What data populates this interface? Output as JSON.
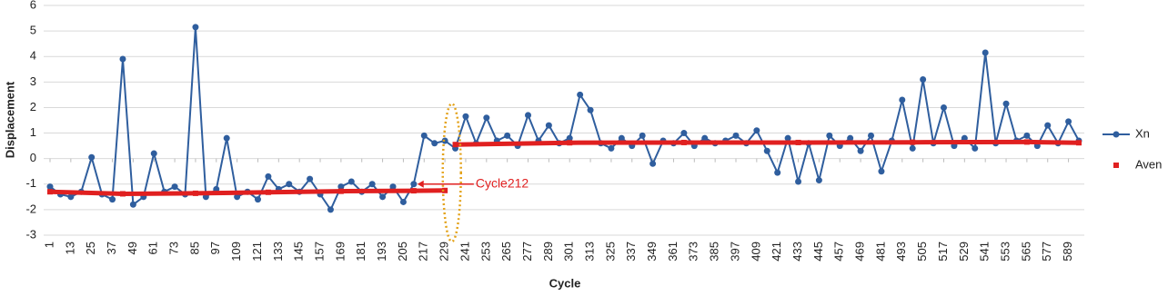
{
  "chart_data": {
    "type": "line",
    "xlabel": "Cycle",
    "ylabel": "Displacement",
    "annotation": "Cycle212",
    "xlim": [
      1,
      595
    ],
    "ylim": [
      -3,
      6
    ],
    "xticks": [
      1,
      13,
      25,
      37,
      49,
      61,
      73,
      85,
      97,
      109,
      121,
      133,
      145,
      157,
      169,
      181,
      193,
      205,
      217,
      229,
      241,
      253,
      265,
      277,
      289,
      301,
      313,
      325,
      337,
      349,
      361,
      373,
      385,
      397,
      409,
      421,
      433,
      445,
      457,
      469,
      481,
      493,
      505,
      517,
      529,
      541,
      553,
      565,
      577,
      589
    ],
    "yticks": [
      -3,
      -2,
      -1,
      0,
      1,
      2,
      3,
      4,
      5,
      6
    ],
    "grid": true,
    "legend": "right",
    "series": [
      {
        "name": "Xn",
        "color": "#2f5e9e",
        "marker": "circle",
        "x": [
          1,
          7,
          13,
          19,
          25,
          31,
          37,
          43,
          49,
          55,
          61,
          67,
          73,
          79,
          85,
          91,
          97,
          103,
          109,
          115,
          121,
          127,
          133,
          139,
          145,
          151,
          157,
          163,
          169,
          175,
          181,
          187,
          193,
          199,
          205,
          211,
          217,
          223,
          229,
          235,
          241,
          247,
          253,
          259,
          265,
          271,
          277,
          283,
          289,
          295,
          301,
          307,
          313,
          319,
          325,
          331,
          337,
          343,
          349,
          355,
          361,
          367,
          373,
          379,
          385,
          391,
          397,
          403,
          409,
          415,
          421,
          427,
          433,
          439,
          445,
          451,
          457,
          463,
          469,
          475,
          481,
          487,
          493,
          499,
          505,
          511,
          517,
          523,
          529,
          535,
          541,
          547,
          553,
          559,
          565,
          571,
          577,
          583,
          589,
          595
        ],
        "values": [
          -1.1,
          -1.4,
          -1.5,
          -1.3,
          0.05,
          -1.4,
          -1.6,
          3.9,
          -1.8,
          -1.5,
          0.2,
          -1.3,
          -1.1,
          -1.4,
          5.15,
          -1.5,
          -1.2,
          0.8,
          -1.5,
          -1.3,
          -1.6,
          -0.7,
          -1.2,
          -1.0,
          -1.3,
          -0.8,
          -1.4,
          -2.0,
          -1.1,
          -0.9,
          -1.3,
          -1.0,
          -1.5,
          -1.1,
          -1.7,
          -1.0,
          0.9,
          0.6,
          0.7,
          0.4,
          1.65,
          0.6,
          1.6,
          0.7,
          0.9,
          0.5,
          1.7,
          0.7,
          1.3,
          0.6,
          0.8,
          2.5,
          1.9,
          0.6,
          0.4,
          0.8,
          0.5,
          0.9,
          -0.2,
          0.7,
          0.6,
          1.0,
          0.5,
          0.8,
          0.6,
          0.7,
          0.9,
          0.6,
          1.1,
          0.3,
          -0.55,
          0.8,
          -0.9,
          0.6,
          -0.85,
          0.9,
          0.5,
          0.8,
          0.3,
          0.9,
          -0.5,
          0.7,
          2.3,
          0.4,
          3.1,
          0.6,
          2.0,
          0.5,
          0.8,
          0.4,
          4.15,
          0.6,
          2.15,
          0.7,
          0.9,
          0.5,
          1.3,
          0.6,
          1.45,
          0.7
        ]
      },
      {
        "name": "Aven",
        "color": "#e02020",
        "marker": "square",
        "x": [
          1,
          43,
          85,
          127,
          169,
          211,
          229,
          232,
          235,
          301,
          367,
          433,
          499,
          565,
          595
        ],
        "values": [
          -1.3,
          -1.38,
          -1.36,
          -1.32,
          -1.28,
          -1.26,
          -1.25,
          null,
          0.55,
          0.62,
          0.63,
          0.63,
          0.64,
          0.65,
          0.62
        ]
      }
    ]
  }
}
